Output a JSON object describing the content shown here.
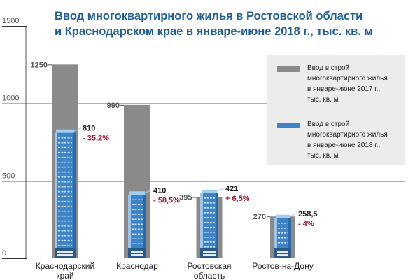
{
  "chart_data": {
    "type": "bar",
    "title": [
      "Ввод многоквартирного жилья в Ростовской области",
      "и Краснодарском крае в январе-июне 2018 г., тыс. кв. м"
    ],
    "ylim": [
      0,
      1500
    ],
    "yticks": [
      0,
      500,
      1000,
      1500
    ],
    "categories": [
      "Краснодарский край",
      "Краснодар",
      "Ростовская область",
      "Ростов-на-Дону"
    ],
    "category_labels": [
      [
        "Краснодарский",
        "край"
      ],
      [
        "Краснодар"
      ],
      [
        "Ростовская",
        "область"
      ],
      [
        "Ростов-на-Дону"
      ]
    ],
    "series": [
      {
        "name": "Ввод в строй многоквартирного жилья в январе-июне 2017 г., тыс. кв. м",
        "values": [
          1250,
          990,
          395,
          270
        ],
        "labels": [
          "1250",
          "990",
          "395",
          "270"
        ],
        "color": "#8a8a8a"
      },
      {
        "name": "Ввод в строй многоквартирного жилья в январе-июне 2018 г., тыс. кв. м",
        "values": [
          810,
          410,
          421,
          258.5
        ],
        "labels": [
          "810",
          "410",
          "421",
          "258,5"
        ],
        "changes": [
          "- 35,2%",
          "- 58,5%",
          "+ 6,5%",
          "- 4%"
        ],
        "color": "#3f84c6"
      }
    ],
    "legend": {
      "position": "right",
      "entries": [
        [
          "Ввод в строй",
          "многоквартирного жилья",
          "в январе-июне 2017 г.,",
          "тыс. кв. м"
        ],
        [
          "Ввод в строй",
          "многоквартирного жилья",
          "в январе-июне 2018 г.,",
          "тыс. кв. м"
        ]
      ]
    },
    "colors": {
      "title": "#1f5f99",
      "change": "#a8192e",
      "grid": "#333333"
    }
  }
}
